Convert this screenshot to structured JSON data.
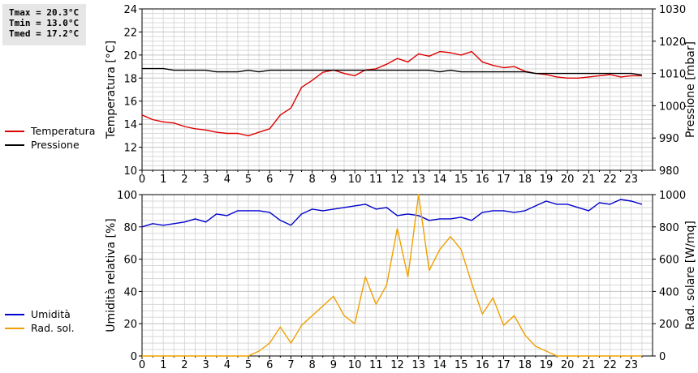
{
  "stats": {
    "tmax": "Tmax = 20.3°C",
    "tmin": "Tmin = 13.0°C",
    "tmed": "Tmed = 17.2°C"
  },
  "colors": {
    "temperatura": "#dd0000",
    "pressione": "#000000",
    "umidita": "#0000cc",
    "rad_sol": "#f0a000",
    "grid": "#d8d8d8"
  },
  "chart_data": [
    {
      "type": "line",
      "id": "top",
      "grid": true,
      "x_ticks": [
        "0",
        "1",
        "2",
        "3",
        "4",
        "5",
        "6",
        "7",
        "8",
        "9",
        "10",
        "11",
        "12",
        "13",
        "14",
        "15",
        "16",
        "17",
        "18",
        "19",
        "20",
        "21",
        "22",
        "23"
      ],
      "xlim": [
        0,
        24
      ],
      "left_axis": {
        "label": "Temperatura [°C]",
        "ylim": [
          10,
          24
        ],
        "ticks": [
          "10",
          "12",
          "14",
          "16",
          "18",
          "20",
          "22",
          "24"
        ]
      },
      "right_axis": {
        "label": "Pressione [mbar]",
        "ylim": [
          980,
          1030
        ],
        "ticks": [
          "980",
          "990",
          "1000",
          "1010",
          "1020",
          "1030"
        ]
      },
      "series": [
        {
          "name": "Temperatura",
          "axis": "left",
          "color_key": "temperatura",
          "x": [
            0,
            0.5,
            1,
            1.5,
            2,
            2.5,
            3,
            3.5,
            4,
            4.5,
            5,
            5.5,
            6,
            6.5,
            7,
            7.5,
            8,
            8.5,
            9,
            9.5,
            10,
            10.5,
            11,
            11.5,
            12,
            12.5,
            13,
            13.5,
            14,
            14.5,
            15,
            15.5,
            16,
            16.5,
            17,
            17.5,
            18,
            18.5,
            19,
            19.5,
            20,
            20.5,
            21,
            21.5,
            22,
            22.5,
            23,
            23.5
          ],
          "values": [
            14.8,
            14.4,
            14.2,
            14.1,
            13.8,
            13.6,
            13.5,
            13.3,
            13.2,
            13.2,
            13.0,
            13.3,
            13.6,
            14.8,
            15.4,
            17.2,
            17.8,
            18.5,
            18.7,
            18.4,
            18.2,
            18.7,
            18.8,
            19.2,
            19.7,
            19.4,
            20.1,
            19.9,
            20.3,
            20.2,
            20.0,
            20.3,
            19.4,
            19.1,
            18.9,
            19.0,
            18.6,
            18.4,
            18.3,
            18.1,
            18.0,
            18.0,
            18.1,
            18.2,
            18.3,
            18.1,
            18.2,
            18.2
          ]
        },
        {
          "name": "Pressione",
          "axis": "right",
          "color_key": "pressione",
          "x": [
            0,
            0.5,
            1,
            1.5,
            2,
            2.5,
            3,
            3.5,
            4,
            4.5,
            5,
            5.5,
            6,
            6.5,
            7,
            7.5,
            8,
            8.5,
            9,
            9.5,
            10,
            10.5,
            11,
            11.5,
            12,
            12.5,
            13,
            13.5,
            14,
            14.5,
            15,
            15.5,
            16,
            16.5,
            17,
            17.5,
            18,
            18.5,
            19,
            19.5,
            20,
            20.5,
            21,
            21.5,
            22,
            22.5,
            23,
            23.5
          ],
          "values": [
            1011.5,
            1011.5,
            1011.5,
            1011,
            1011,
            1011,
            1011,
            1010.5,
            1010.5,
            1010.5,
            1011,
            1010.5,
            1011,
            1011,
            1011,
            1011,
            1011,
            1011,
            1011,
            1011,
            1011,
            1011,
            1011,
            1011,
            1011,
            1011,
            1011,
            1011,
            1010.5,
            1011,
            1010.5,
            1010.5,
            1010.5,
            1010.5,
            1010.5,
            1010.5,
            1010.5,
            1010,
            1010,
            1010,
            1010,
            1010,
            1010,
            1010,
            1010,
            1010,
            1010,
            1009.5
          ]
        }
      ]
    },
    {
      "type": "line",
      "id": "bottom",
      "grid": true,
      "x_ticks": [
        "0",
        "1",
        "2",
        "3",
        "4",
        "5",
        "6",
        "7",
        "8",
        "9",
        "10",
        "11",
        "12",
        "13",
        "14",
        "15",
        "16",
        "17",
        "18",
        "19",
        "20",
        "21",
        "22",
        "23"
      ],
      "xlim": [
        0,
        24
      ],
      "left_axis": {
        "label": "Umidità relativa [%]",
        "ylim": [
          0,
          100
        ],
        "ticks": [
          "0",
          "20",
          "40",
          "60",
          "80",
          "100"
        ]
      },
      "right_axis": {
        "label": "Rad. solare [W/mq]",
        "ylim": [
          0,
          1000
        ],
        "ticks": [
          "0",
          "200",
          "400",
          "600",
          "800",
          "1000"
        ]
      },
      "series": [
        {
          "name": "Umidità",
          "axis": "left",
          "color_key": "umidita",
          "x": [
            0,
            0.5,
            1,
            1.5,
            2,
            2.5,
            3,
            3.5,
            4,
            4.5,
            5,
            5.5,
            6,
            6.5,
            7,
            7.5,
            8,
            8.5,
            9,
            9.5,
            10,
            10.5,
            11,
            11.5,
            12,
            12.5,
            13,
            13.5,
            14,
            14.5,
            15,
            15.5,
            16,
            16.5,
            17,
            17.5,
            18,
            18.5,
            19,
            19.5,
            20,
            20.5,
            21,
            21.5,
            22,
            22.5,
            23,
            23.5
          ],
          "values": [
            80,
            82,
            81,
            82,
            83,
            85,
            83,
            88,
            87,
            90,
            90,
            90,
            89,
            84,
            81,
            88,
            91,
            90,
            91,
            92,
            93,
            94,
            91,
            92,
            87,
            88,
            87,
            84,
            85,
            85,
            86,
            84,
            89,
            90,
            90,
            89,
            90,
            93,
            96,
            94,
            94,
            92,
            90,
            95,
            94,
            97,
            96,
            94
          ]
        },
        {
          "name": "Rad. sol.",
          "axis": "right",
          "color_key": "rad_sol",
          "x": [
            0,
            0.5,
            1,
            1.5,
            2,
            2.5,
            3,
            3.5,
            4,
            4.5,
            5,
            5.5,
            6,
            6.5,
            7,
            7.5,
            8,
            8.5,
            9,
            9.5,
            10,
            10.5,
            11,
            11.5,
            12,
            12.5,
            13,
            13.5,
            14,
            14.5,
            15,
            15.5,
            16,
            16.5,
            17,
            17.5,
            18,
            18.5,
            19,
            19.5,
            20,
            20.5,
            21,
            21.5,
            22,
            22.5,
            23,
            23.5
          ],
          "values": [
            0,
            0,
            0,
            0,
            0,
            0,
            0,
            0,
            0,
            0,
            0,
            30,
            80,
            180,
            80,
            190,
            250,
            310,
            370,
            250,
            200,
            490,
            320,
            440,
            790,
            490,
            1000,
            530,
            660,
            740,
            660,
            450,
            260,
            360,
            190,
            250,
            130,
            60,
            30,
            0,
            0,
            0,
            0,
            0,
            0,
            0,
            0,
            0
          ]
        }
      ]
    }
  ]
}
